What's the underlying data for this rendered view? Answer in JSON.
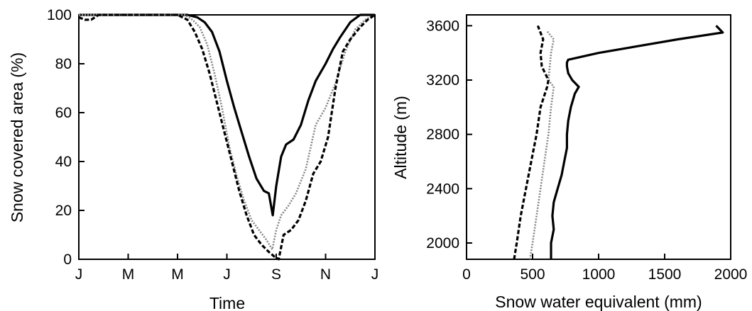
{
  "chart_data": [
    {
      "type": "line",
      "xlabel": "Time",
      "ylabel": "Snow covered area (%)",
      "xticks": [
        "J",
        "M",
        "M",
        "J",
        "S",
        "N",
        "J"
      ],
      "ylim": [
        0,
        100
      ],
      "yticks": [
        "0",
        "20",
        "40",
        "60",
        "80",
        "100"
      ],
      "grid": false,
      "legend": "none",
      "series": [
        {
          "style": "solid",
          "color": "#000000",
          "x": [
            0,
            1,
            2,
            2.2,
            2.4,
            2.55,
            2.7,
            2.85,
            3,
            3.15,
            3.3,
            3.45,
            3.6,
            3.75,
            3.85,
            3.93,
            4,
            4.1,
            4.2,
            4.35,
            4.5,
            4.65,
            4.8,
            5,
            5.15,
            5.3,
            5.5,
            5.7,
            6
          ],
          "values": [
            100,
            100,
            100,
            100,
            99,
            97,
            93,
            85,
            73,
            62,
            52,
            42,
            33,
            28,
            27,
            18,
            30,
            42,
            47,
            49,
            55,
            65,
            73,
            80,
            86,
            91,
            97,
            100,
            100
          ]
        },
        {
          "style": "dotted",
          "color": "#888888",
          "x": [
            0,
            1,
            2,
            2.15,
            2.3,
            2.45,
            2.6,
            2.75,
            2.9,
            3.05,
            3.2,
            3.35,
            3.5,
            3.65,
            3.8,
            3.92,
            4,
            4.1,
            4.25,
            4.4,
            4.6,
            4.8,
            5,
            5.2,
            5.4,
            5.6,
            5.8,
            6
          ],
          "values": [
            100,
            100,
            100,
            100,
            98,
            95,
            88,
            76,
            62,
            46,
            34,
            24,
            16,
            12,
            8,
            4,
            12,
            18,
            22,
            27,
            37,
            55,
            62,
            72,
            85,
            94,
            98,
            100
          ]
        },
        {
          "style": "dashed",
          "color": "#000000",
          "x": [
            0,
            0.12,
            0.25,
            0.4,
            1,
            2,
            2.2,
            2.35,
            2.5,
            2.65,
            2.8,
            2.95,
            3.1,
            3.25,
            3.4,
            3.55,
            3.7,
            3.85,
            3.97,
            4.05,
            4.15,
            4.3,
            4.45,
            4.6,
            4.75,
            4.9,
            5.05,
            5.2,
            5.35,
            5.5,
            5.7,
            5.85,
            6
          ],
          "values": [
            99,
            98,
            98,
            100,
            100,
            100,
            98,
            93,
            86,
            76,
            64,
            52,
            40,
            28,
            18,
            10,
            6,
            3,
            1,
            0,
            10,
            12,
            16,
            24,
            35,
            40,
            50,
            70,
            85,
            90,
            95,
            98,
            100
          ]
        }
      ]
    },
    {
      "type": "line",
      "xlabel": "Snow water equivalent (mm)",
      "ylabel": "Altitude (m)",
      "xlim": [
        0,
        2000
      ],
      "xticks": [
        "0",
        "500",
        "1000",
        "1500",
        "2000"
      ],
      "ylim": [
        1880,
        3680
      ],
      "yticks": [
        "2000",
        "2400",
        "2800",
        "3200",
        "3600"
      ],
      "grid": false,
      "legend": "none",
      "series": [
        {
          "style": "solid",
          "color": "#000000",
          "sample_altitudes": [
            1880,
            2000,
            2100,
            2200,
            2300,
            2400,
            2500,
            2600,
            2700,
            2800,
            2900,
            3000,
            3100,
            3150,
            3200,
            3250,
            3300,
            3330,
            3350,
            3400,
            3450,
            3500,
            3550,
            3600
          ],
          "values": [
            640,
            640,
            660,
            650,
            660,
            690,
            720,
            740,
            760,
            760,
            770,
            790,
            820,
            850,
            800,
            770,
            760,
            760,
            770,
            1000,
            1300,
            1600,
            1940,
            1890
          ]
        },
        {
          "style": "dotted",
          "color": "#888888",
          "sample_altitudes": [
            1880,
            2000,
            2200,
            2400,
            2600,
            2800,
            3000,
            3150,
            3200,
            3300,
            3400,
            3500,
            3560
          ],
          "values": [
            480,
            500,
            530,
            560,
            590,
            620,
            640,
            660,
            620,
            630,
            640,
            660,
            610
          ]
        },
        {
          "style": "dashed",
          "color": "#000000",
          "sample_altitudes": [
            1880,
            2000,
            2200,
            2400,
            2600,
            2800,
            3000,
            3150,
            3200,
            3300,
            3400,
            3500,
            3600
          ],
          "values": [
            360,
            380,
            410,
            450,
            490,
            530,
            560,
            610,
            620,
            570,
            560,
            580,
            540
          ]
        }
      ]
    }
  ]
}
